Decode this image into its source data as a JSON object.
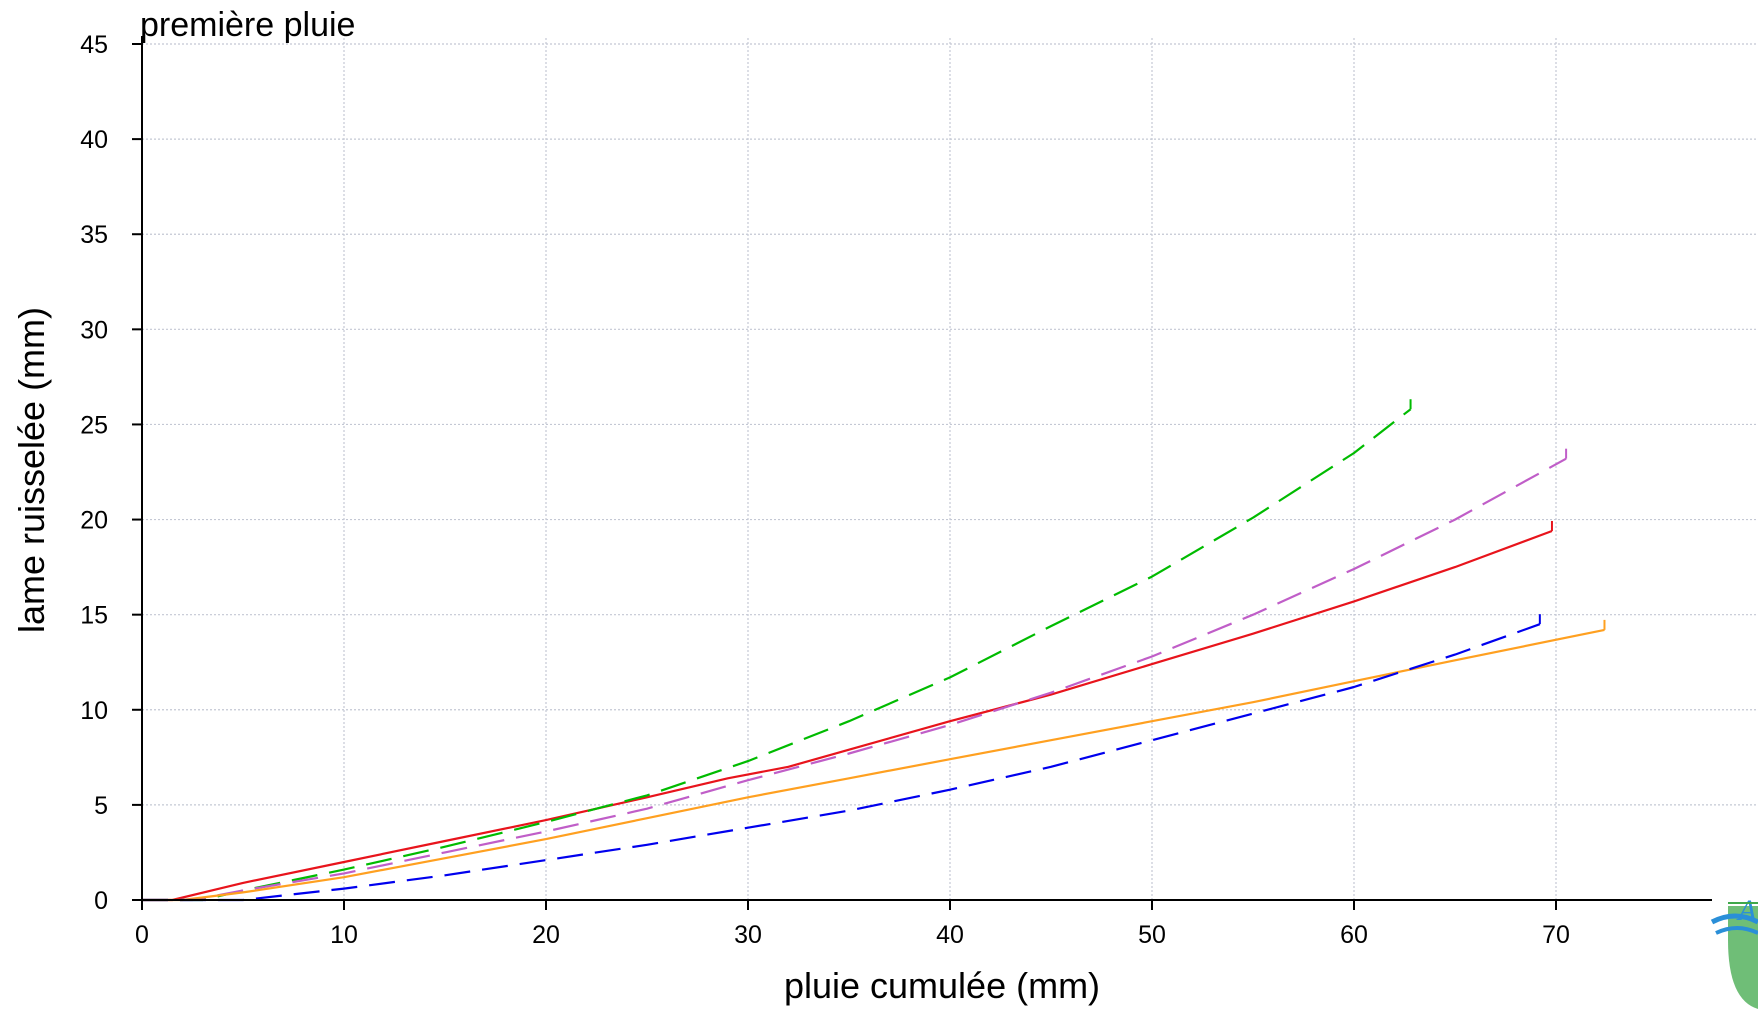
{
  "chart_data": {
    "type": "line",
    "title": "première pluie",
    "xlabel": "pluie cumulée (mm)",
    "ylabel": "lame ruisselée (mm)",
    "xlim": [
      0,
      80
    ],
    "ylim": [
      0,
      45
    ],
    "xticks": [
      0,
      10,
      20,
      30,
      40,
      50,
      60,
      70
    ],
    "yticks": [
      0,
      5,
      10,
      15,
      20,
      25,
      30,
      35,
      40,
      45
    ],
    "grid": true,
    "series": [
      {
        "color": "#e8141c",
        "style": "solid",
        "x": [
          0,
          1.5,
          5,
          10,
          15,
          20,
          25,
          29,
          32,
          35,
          40,
          45,
          50,
          55,
          60,
          65,
          69.8
        ],
        "y": [
          0,
          0,
          0.9,
          2.0,
          3.1,
          4.2,
          5.4,
          6.4,
          7.0,
          7.9,
          9.4,
          10.8,
          12.4,
          14.0,
          15.7,
          17.5,
          19.4
        ]
      },
      {
        "color": "#00bb00",
        "style": "dashed",
        "x": [
          0,
          3,
          5,
          10,
          15,
          20,
          25,
          30,
          35,
          40,
          45,
          50,
          55,
          60,
          62.8
        ],
        "y": [
          0,
          0,
          0.5,
          1.6,
          2.8,
          4.1,
          5.5,
          7.3,
          9.4,
          11.7,
          14.4,
          17.0,
          20.1,
          23.5,
          25.8
        ]
      },
      {
        "color": "#c05ec8",
        "style": "dashed",
        "x": [
          0,
          2.5,
          5,
          10,
          15,
          20,
          25,
          30,
          35,
          40,
          45,
          50,
          55,
          60,
          65,
          70.5
        ],
        "y": [
          0,
          0,
          0.5,
          1.4,
          2.5,
          3.6,
          4.8,
          6.3,
          7.7,
          9.2,
          10.9,
          12.8,
          15.0,
          17.4,
          20.0,
          23.2
        ]
      },
      {
        "color": "#ffa020",
        "style": "solid",
        "x": [
          0,
          2,
          5,
          10,
          15,
          20,
          25,
          30,
          35,
          40,
          45,
          50,
          55,
          60,
          65,
          72.4
        ],
        "y": [
          0,
          0,
          0.4,
          1.2,
          2.2,
          3.2,
          4.3,
          5.4,
          6.4,
          7.4,
          8.4,
          9.4,
          10.4,
          11.5,
          12.6,
          14.2
        ]
      },
      {
        "color": "#0000ee",
        "style": "dashed",
        "x": [
          0,
          5,
          10,
          15,
          20,
          25,
          30,
          35,
          40,
          45,
          50,
          55,
          60,
          65,
          69.2
        ],
        "y": [
          0,
          0,
          0.6,
          1.3,
          2.1,
          2.9,
          3.8,
          4.7,
          5.8,
          7.0,
          8.4,
          9.8,
          11.2,
          12.9,
          14.5
        ]
      }
    ]
  }
}
